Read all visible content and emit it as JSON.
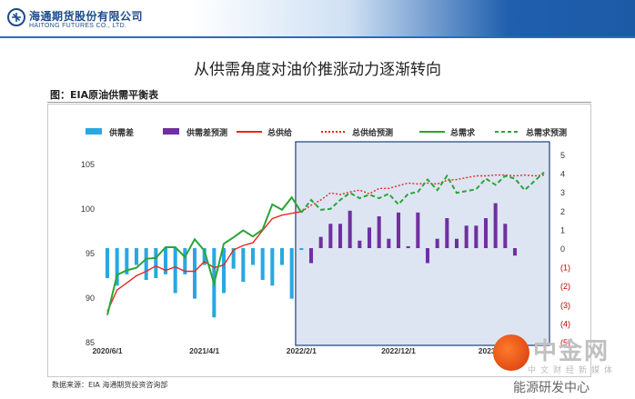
{
  "header": {
    "logo_cn": "海通期货股份有限公司",
    "logo_en": "HAITONG FUTURES CO., LTD."
  },
  "slide_title": "从供需角度对油价推涨动力逐渐转向",
  "figure_label": "图：EIA原油供需平衡表",
  "source": "数据来源：EIA    海通期货投资咨询部",
  "watermark": {
    "text": "中金网",
    "sub": "中文财经新媒体",
    "brand": "能源研发中心"
  },
  "colors": {
    "gap": "#29a8e0",
    "gap_forecast": "#7030a0",
    "supply": "#e8281f",
    "demand": "#2aa538",
    "shade": "#dde5f2",
    "shade_border": "#1f3f78"
  },
  "chart_data": {
    "type": "bar+line",
    "title": "",
    "legend": [
      "供需差",
      "供需差预测",
      "总供给",
      "总供给预测",
      "总需求",
      "总需求预测"
    ],
    "legend_placement": "top",
    "x_tick_labels": [
      "2020/6/1",
      "2021/4/1",
      "2022/2/1",
      "2022/12/1",
      "2023/10/1"
    ],
    "left_axis": {
      "ticks": [
        "85",
        "90",
        "95",
        "100",
        "105"
      ],
      "ylim": [
        85,
        106
      ]
    },
    "right_axis": {
      "ticks": [
        "5",
        "4",
        "3",
        "2",
        "1",
        "0",
        "(1)",
        "(2)",
        "(3)",
        "(4)",
        "(5)"
      ],
      "ylim": [
        -5,
        5
      ]
    },
    "forecast_start_month_index": 20,
    "total_supply": [
      88.4,
      90.8,
      91.6,
      92.4,
      92.9,
      93.5,
      93.0,
      93.4,
      92.9,
      92.9,
      94.0,
      93.3,
      93.6,
      95.3,
      95.8,
      96.1,
      97.5,
      98.8,
      99.2,
      99.4,
      99.6,
      100.3,
      100.9,
      101.7,
      101.5,
      101.8,
      102.0,
      101.6,
      102.2,
      102.2,
      102.5,
      102.8,
      102.7,
      102.8,
      102.7,
      103.1,
      103.2,
      103.4,
      103.6,
      103.6,
      103.7,
      103.7,
      103.6,
      103.7,
      103.6,
      103.7
    ],
    "total_demand": [
      88.0,
      92.5,
      93.0,
      93.3,
      94.3,
      94.4,
      95.6,
      95.6,
      94.5,
      96.5,
      95.2,
      91.5,
      96.0,
      96.7,
      97.5,
      96.8,
      97.6,
      100.4,
      99.8,
      101.2,
      99.5,
      100.9,
      99.8,
      99.9,
      100.9,
      101.7,
      101.1,
      101.5,
      101.1,
      101.6,
      100.4,
      101.6,
      101.8,
      103.2,
      102.0,
      103.6,
      101.7,
      101.9,
      102.1,
      103.3,
      102.6,
      103.6,
      103.3,
      102.0,
      103.0,
      104.0
    ],
    "supply_demand_gap": [
      -1.6,
      -2.0,
      -1.4,
      -0.9,
      -1.7,
      -1.6,
      -1.4,
      -2.4,
      -1.4,
      -2.7,
      -0.9,
      -3.7,
      -2.4,
      -1.1,
      -1.8,
      -0.9,
      -1.7,
      -2.0,
      -0.9,
      -2.7,
      -0.1
    ],
    "gap_forecast": [
      -0.8,
      0.6,
      1.3,
      1.3,
      2.0,
      0.4,
      1.1,
      1.7,
      0.5,
      1.9,
      0.1,
      1.9,
      -0.8,
      0.5,
      1.6,
      0.5,
      1.2,
      1.2,
      1.6,
      2.4,
      1.3,
      -0.4
    ]
  }
}
